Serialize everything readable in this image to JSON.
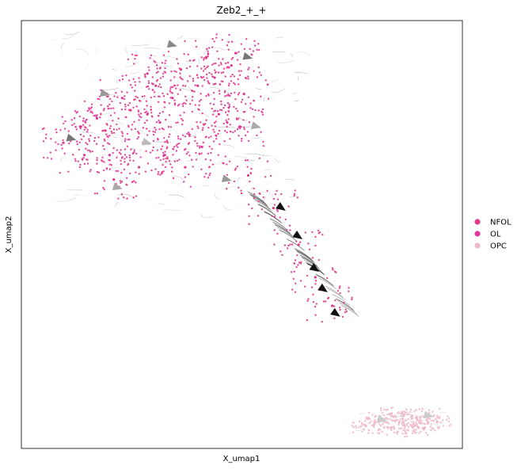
{
  "chart_data": {
    "type": "scatter",
    "title": "Zeb2_+_+",
    "xlabel": "X_umap1",
    "ylabel": "X_umap2",
    "xticks": [],
    "yticks": [],
    "grid": false,
    "legend_placement": "right",
    "overlay": "velocity streamlines with arrowheads",
    "series": [
      {
        "name": "NFOL",
        "color": "#de3a8a",
        "region": "upper-left cloud and diagonal stream",
        "points": [
          [
            1.5,
            7.2
          ],
          [
            2.0,
            7.8
          ],
          [
            2.6,
            8.3
          ],
          [
            3.2,
            8.9
          ],
          [
            3.8,
            9.3
          ],
          [
            4.4,
            9.6
          ],
          [
            5.0,
            9.4
          ],
          [
            5.3,
            8.7
          ],
          [
            4.7,
            8.2
          ],
          [
            4.0,
            7.7
          ],
          [
            3.4,
            7.2
          ],
          [
            2.8,
            6.9
          ],
          [
            2.2,
            6.6
          ],
          [
            3.0,
            8.2
          ],
          [
            4.2,
            8.9
          ],
          [
            5.4,
            6.7
          ],
          [
            6.0,
            5.9
          ],
          [
            6.6,
            5.0
          ],
          [
            7.0,
            4.2
          ],
          [
            7.4,
            3.5
          ]
        ]
      },
      {
        "name": "OL",
        "color": "#e0389a",
        "region": "upper-left cloud",
        "points": [
          [
            1.0,
            7.5
          ],
          [
            1.8,
            8.1
          ],
          [
            2.4,
            8.6
          ],
          [
            3.6,
            8.6
          ],
          [
            4.6,
            9.1
          ],
          [
            5.1,
            9.7
          ],
          [
            4.9,
            8.0
          ],
          [
            3.9,
            6.9
          ],
          [
            2.9,
            7.5
          ],
          [
            2.1,
            7.2
          ],
          [
            3.3,
            8.0
          ],
          [
            4.3,
            7.4
          ],
          [
            5.2,
            7.9
          ],
          [
            3.0,
            9.2
          ],
          [
            1.4,
            7.9
          ]
        ]
      },
      {
        "name": "OPC",
        "color": "#ecb9c6",
        "region": "lower-right cluster",
        "points": [
          [
            8.2,
            0.55
          ],
          [
            8.5,
            0.7
          ],
          [
            8.8,
            0.85
          ],
          [
            9.1,
            0.8
          ],
          [
            9.4,
            0.75
          ],
          [
            9.7,
            0.8
          ],
          [
            9.9,
            0.65
          ],
          [
            9.6,
            0.5
          ],
          [
            9.2,
            0.45
          ],
          [
            8.8,
            0.5
          ],
          [
            8.4,
            0.6
          ],
          [
            9.0,
            0.65
          ],
          [
            9.5,
            0.62
          ]
        ]
      }
    ]
  }
}
